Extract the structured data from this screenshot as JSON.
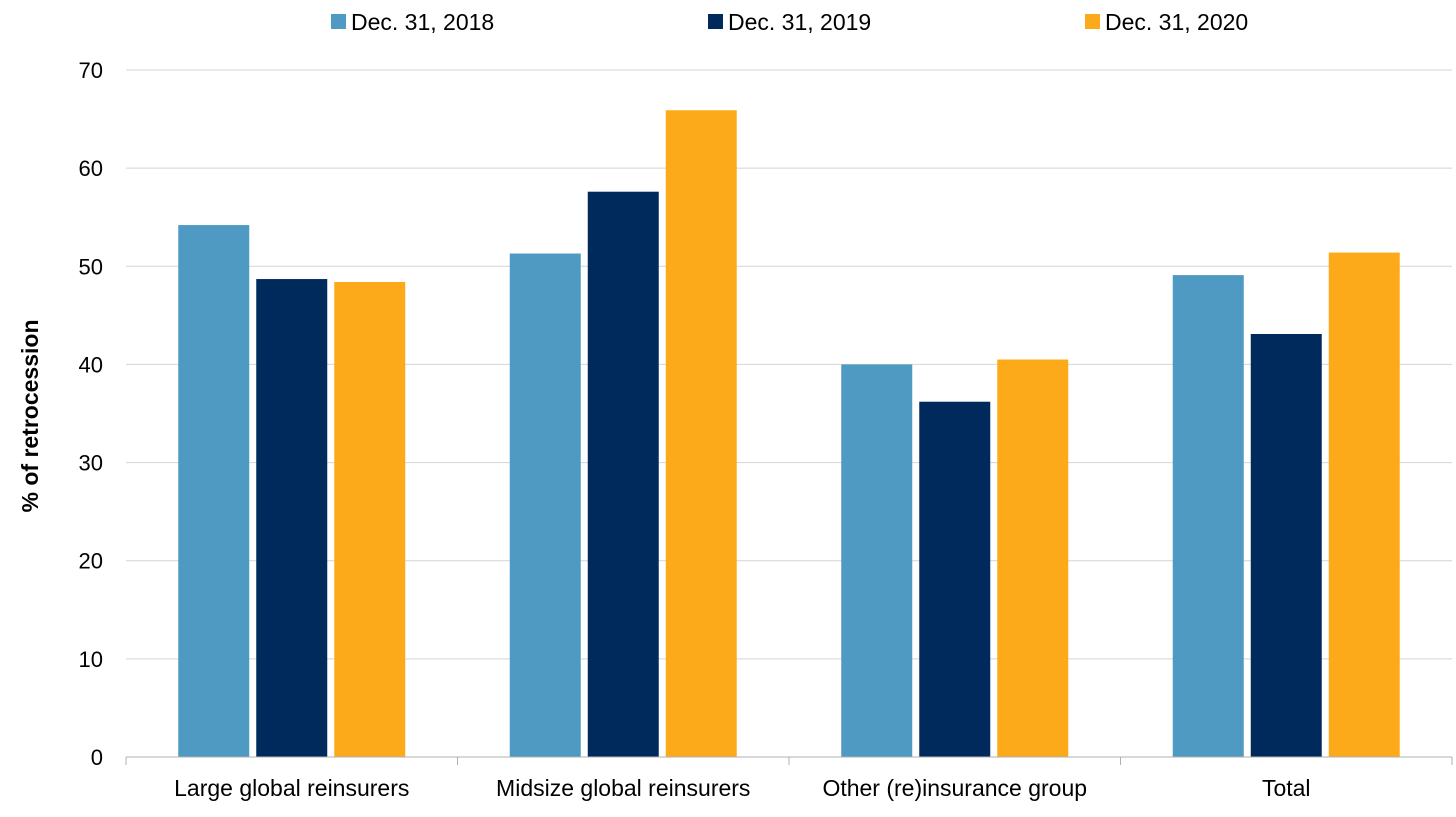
{
  "chart_data": {
    "type": "bar",
    "title": "",
    "xlabel": "",
    "ylabel": "% of retrocession",
    "ylim": [
      0,
      70
    ],
    "yticks": [
      0,
      10,
      20,
      30,
      40,
      50,
      60,
      70
    ],
    "grid": true,
    "legend_position": "top",
    "categories": [
      "Large global reinsurers",
      "Midsize global reinsurers",
      "Other (re)insurance group",
      "Total"
    ],
    "series": [
      {
        "name": "Dec. 31, 2018",
        "color": "#4f9ac3",
        "values": [
          54.2,
          51.3,
          40.0,
          49.1
        ]
      },
      {
        "name": "Dec. 31, 2019",
        "color": "#002a5c",
        "values": [
          48.7,
          57.6,
          36.2,
          43.1
        ]
      },
      {
        "name": "Dec. 31, 2020",
        "color": "#fdaa1a",
        "values": [
          48.4,
          65.9,
          40.5,
          51.4
        ]
      }
    ]
  }
}
